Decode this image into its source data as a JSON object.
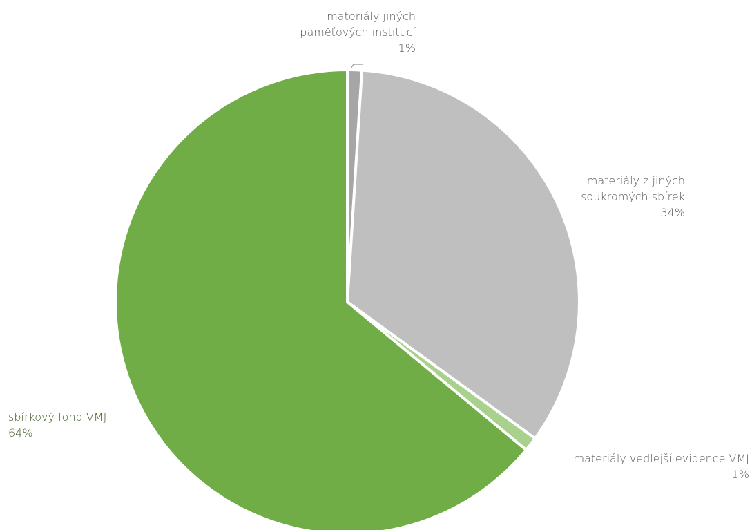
{
  "chart_data": {
    "type": "pie",
    "categories": [
      "materiály jiných paměťových institucí",
      "materiály z jiných soukromých sbírek",
      "materiály vedlejší evidence VMJ",
      "sbírkový fond VMJ"
    ],
    "values": [
      1,
      34,
      1,
      64
    ],
    "value_labels": [
      "1%",
      "34%",
      "1%",
      "64%"
    ],
    "colors": [
      "#a6a6a6",
      "#bfbfbf",
      "#a9d18e",
      "#70ad47"
    ]
  }
}
